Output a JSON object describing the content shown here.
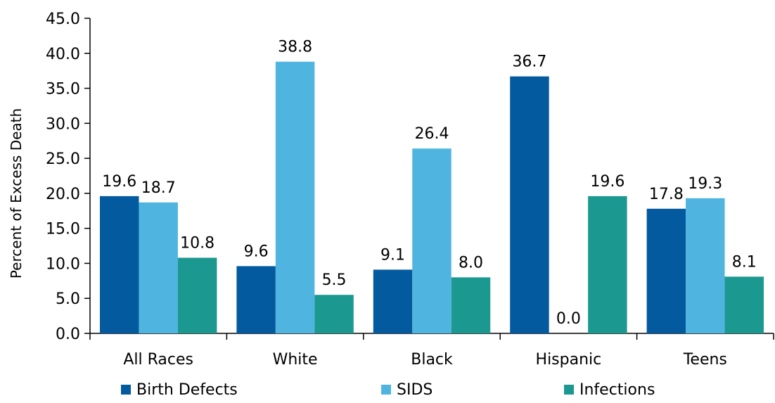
{
  "chart_data": {
    "type": "bar",
    "ylabel": "Percent of Excess Death",
    "xlabel": "",
    "ylim": [
      0,
      45
    ],
    "yticks": [
      "0.0",
      "5.0",
      "10.0",
      "15.0",
      "20.0",
      "25.0",
      "30.0",
      "35.0",
      "40.0",
      "45.0"
    ],
    "categories": [
      "All Races",
      "White",
      "Black",
      "Hispanic",
      "Teens"
    ],
    "series": [
      {
        "name": "Birth Defects",
        "color": "#045a9e",
        "values": [
          19.6,
          9.6,
          9.1,
          36.7,
          17.8
        ],
        "labels": [
          "19.6",
          "9.6",
          "9.1",
          "36.7",
          "17.8"
        ]
      },
      {
        "name": "SIDS",
        "color": "#4fb5e0",
        "values": [
          18.7,
          38.8,
          26.4,
          0.0,
          19.3
        ],
        "labels": [
          "18.7",
          "38.8",
          "26.4",
          "0.0",
          "19.3"
        ]
      },
      {
        "name": "Infections",
        "color": "#1b9890",
        "values": [
          10.8,
          5.5,
          8.0,
          19.6,
          8.1
        ],
        "labels": [
          "10.8",
          "5.5",
          "8.0",
          "19.6",
          "8.1"
        ]
      }
    ],
    "legend_position": "bottom",
    "grid": false
  }
}
